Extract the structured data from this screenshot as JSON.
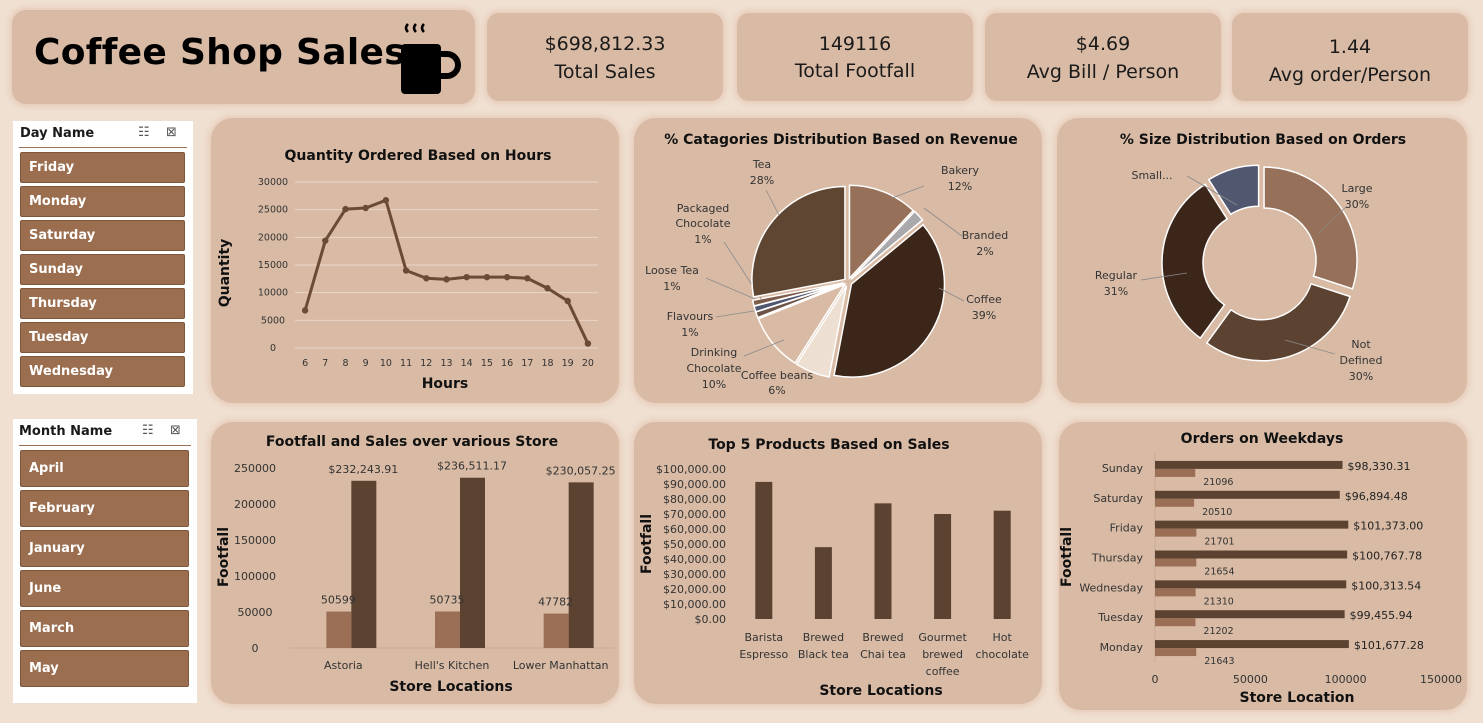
{
  "header": {
    "title": "Coffee Shop Sales",
    "cup_icon": "coffee-cup-icon"
  },
  "kpis": [
    {
      "value": "$698,812.33",
      "label": "Total Sales"
    },
    {
      "value": "149116",
      "label": "Total Footfall"
    },
    {
      "value": "$4.69",
      "label": "Avg Bill / Person"
    },
    {
      "value": "1.44",
      "label": "Avg order/Person"
    }
  ],
  "slicers": {
    "day": {
      "title": "Day Name",
      "items": [
        "Friday",
        "Monday",
        "Saturday",
        "Sunday",
        "Thursday",
        "Tuesday",
        "Wednesday"
      ]
    },
    "month": {
      "title": "Month Name",
      "items": [
        "April",
        "February",
        "January",
        "June",
        "March",
        "May"
      ]
    }
  },
  "colors": {
    "dark": "#5c4331",
    "medium": "#9b6f55",
    "line": "#6b4b35",
    "card": "#d9bba5"
  },
  "chart_data": [
    {
      "type": "line",
      "title": "Quantity Ordered Based on Hours",
      "xlabel": "Hours",
      "ylabel": "Quantity",
      "x": [
        6,
        7,
        8,
        9,
        10,
        11,
        12,
        13,
        14,
        15,
        16,
        17,
        18,
        19,
        20
      ],
      "values": [
        6800,
        19400,
        25100,
        25300,
        26700,
        14000,
        12600,
        12400,
        12800,
        12800,
        12800,
        12600,
        10800,
        8500,
        800
      ],
      "ylim": [
        0,
        30000
      ],
      "yticks": [
        "0",
        "5000",
        "10000",
        "15000",
        "20000",
        "25000",
        "30000"
      ],
      "grid": true
    },
    {
      "type": "pie",
      "title": "% Catagories Distribution Based on Revenue",
      "slices": [
        {
          "label": "Bakery",
          "pct": "12%",
          "value": 12,
          "color": "#97705a"
        },
        {
          "label": "Branded",
          "pct": "2%",
          "value": 2,
          "color": "#a9a9ab"
        },
        {
          "label": "Coffee",
          "pct": "39%",
          "value": 39,
          "color": "#3c2619"
        },
        {
          "label": "Coffee beans",
          "pct": "6%",
          "value": 6,
          "color": "#ede0d2"
        },
        {
          "label": "Drinking Chocolate",
          "pct": "10%",
          "value": 10,
          "color": "#d9bba5"
        },
        {
          "label": "Flavours",
          "pct": "1%",
          "value": 1,
          "color": "#6b5346"
        },
        {
          "label": "Loose Tea",
          "pct": "1%",
          "value": 1,
          "color": "#525770"
        },
        {
          "label": "Packaged Chocolate",
          "pct": "1%",
          "value": 1,
          "color": "#7d5d49"
        },
        {
          "label": "Tea",
          "pct": "28%",
          "value": 28,
          "color": "#5f4633"
        }
      ]
    },
    {
      "type": "pie",
      "title": "% Size Distribution Based on Orders",
      "slices": [
        {
          "label": "Large",
          "pct": "30%",
          "value": 30,
          "color": "#97705a"
        },
        {
          "label": "Not Defined",
          "pct": "30%",
          "value": 30,
          "color": "#5c4331"
        },
        {
          "label": "Regular",
          "pct": "31%",
          "value": 31,
          "color": "#3c2619"
        },
        {
          "label": "Small...",
          "pct": "",
          "value": 9,
          "color": "#525770"
        }
      ]
    },
    {
      "type": "bar",
      "title": "Footfall and Sales over various Store",
      "xlabel": "Store Locations",
      "ylabel": "Footfall",
      "categories": [
        "Astoria",
        "Hell's Kitchen",
        "Lower Manhattan"
      ],
      "series": [
        {
          "values": [
            50599,
            50735,
            47782
          ],
          "labels": [
            "50599",
            "50735",
            "47782"
          ]
        },
        {
          "values": [
            232243.91,
            236511.17,
            230057.25
          ],
          "labels": [
            "$232,243.91",
            "$236,511.17",
            "$230,057.25"
          ]
        }
      ],
      "ylim": [
        0,
        250000
      ],
      "yticks": [
        "0",
        "50000",
        "100000",
        "150000",
        "200000",
        "250000"
      ]
    },
    {
      "type": "bar",
      "title": "Top 5 Products Based on Sales",
      "xlabel": "Store Locations",
      "ylabel": "Footfall",
      "categories": [
        [
          "Barista",
          "Espresso"
        ],
        [
          "Brewed",
          "Black tea"
        ],
        [
          "Brewed",
          "Chai tea"
        ],
        [
          "Gourmet",
          "brewed",
          "coffee"
        ],
        [
          "Hot",
          "chocolate"
        ]
      ],
      "values": [
        91400,
        47900,
        77100,
        70000,
        72200
      ],
      "ylim": [
        0,
        100000
      ],
      "yticks": [
        "$0.00",
        "$10,000.00",
        "$20,000.00",
        "$30,000.00",
        "$40,000.00",
        "$50,000.00",
        "$60,000.00",
        "$70,000.00",
        "$80,000.00",
        "$90,000.00",
        "$100,000.00"
      ]
    },
    {
      "type": "bar",
      "orientation": "horizontal",
      "title": "Orders on Weekdays",
      "xlabel": "Store Location",
      "ylabel": "Footfall",
      "categories": [
        "Sunday",
        "Saturday",
        "Friday",
        "Thursday",
        "Wednesday",
        "Tuesday",
        "Monday"
      ],
      "series": [
        {
          "values": [
            98330.31,
            96894.48,
            101373.0,
            100767.78,
            100313.54,
            99455.94,
            101677.28
          ],
          "labels": [
            "$98,330.31",
            "$96,894.48",
            "$101,373.00",
            "$100,767.78",
            "$100,313.54",
            "$99,455.94",
            "$101,677.28"
          ]
        },
        {
          "values": [
            21096,
            20510,
            21701,
            21654,
            21310,
            21202,
            21643
          ],
          "labels": [
            "21096",
            "20510",
            "21701",
            "21654",
            "21310",
            "21202",
            "21643"
          ]
        }
      ],
      "xlim": [
        0,
        150000
      ],
      "xticks": [
        "0",
        "50000",
        "100000",
        "150000"
      ]
    }
  ]
}
